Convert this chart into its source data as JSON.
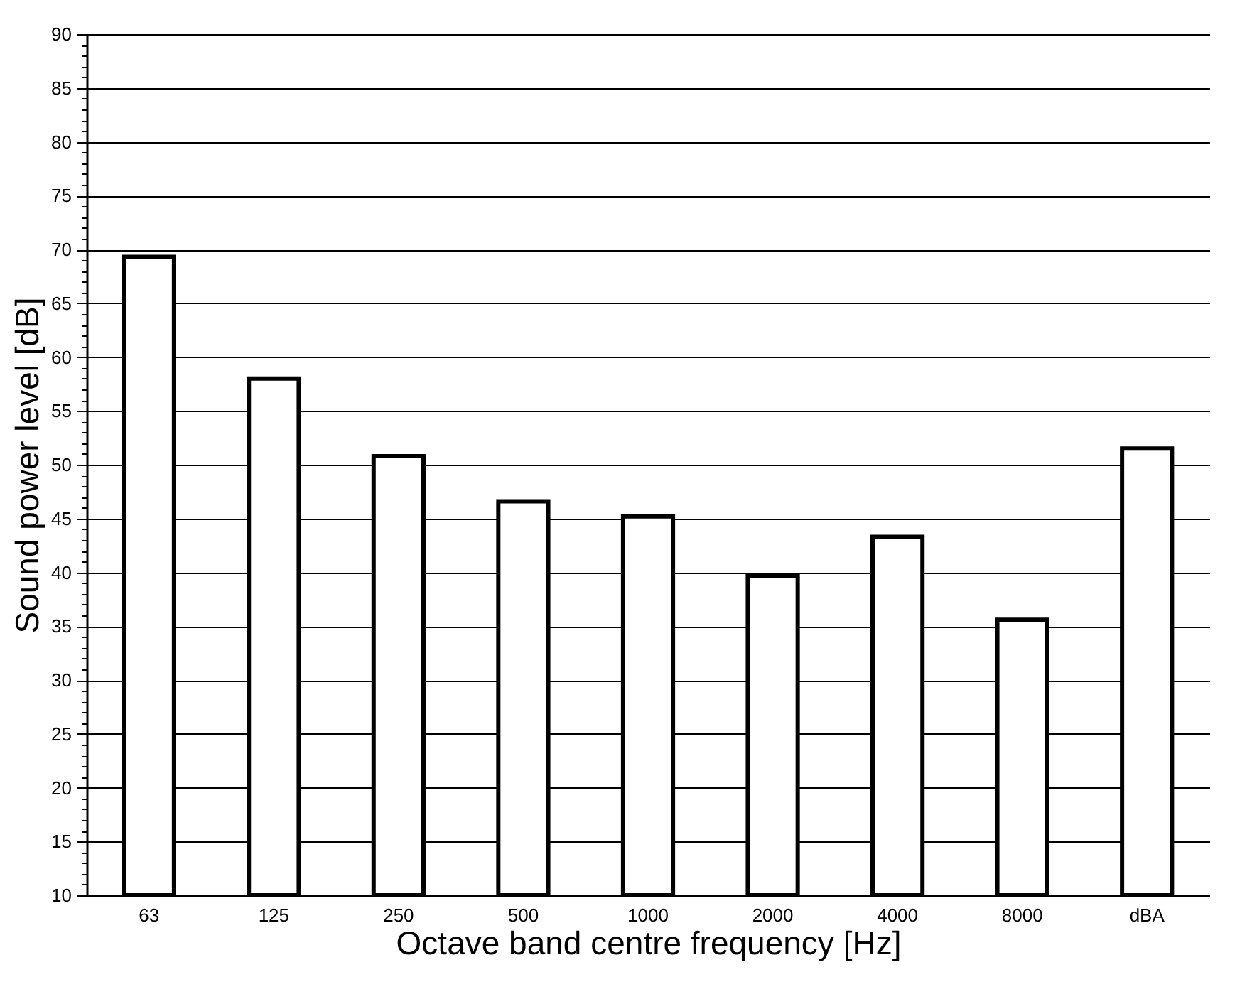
{
  "chart_data": {
    "type": "bar",
    "xlabel": "Octave band centre frequency [Hz]",
    "ylabel": "Sound power level [dB]",
    "categories": [
      "63",
      "125",
      "250",
      "500",
      "1000",
      "2000",
      "4000",
      "8000",
      "dBA"
    ],
    "values": [
      69.3,
      58.0,
      50.8,
      46.6,
      45.2,
      39.7,
      43.3,
      35.6,
      51.5
    ],
    "color": "#ffffff",
    "ylim": [
      10,
      90
    ],
    "yticks": [
      10,
      {
        "value": 11,
        "label": null
      },
      {
        "value": 12,
        "label": null
      },
      {
        "value": 13,
        "label": null
      },
      {
        "value": 14,
        "label": null
      },
      15,
      {
        "value": 16,
        "label": null
      },
      {
        "value": 17,
        "label": null
      },
      {
        "value": 18,
        "label": null
      },
      {
        "value": 19,
        "label": null
      },
      20,
      {
        "value": 21,
        "label": null
      },
      {
        "value": 22,
        "label": null
      },
      {
        "value": 23,
        "label": null
      },
      {
        "value": 24,
        "label": null
      },
      25,
      {
        "value": 26,
        "label": null
      },
      {
        "value": 27,
        "label": null
      },
      {
        "value": 28,
        "label": null
      },
      {
        "value": 29,
        "label": null
      },
      30,
      {
        "value": 31,
        "label": null
      },
      {
        "value": 32,
        "label": null
      },
      {
        "value": 33,
        "label": null
      },
      {
        "value": 34,
        "label": null
      },
      35,
      {
        "value": 36,
        "label": null
      },
      {
        "value": 37,
        "label": null
      },
      {
        "value": 38,
        "label": null
      },
      {
        "value": 39,
        "label": null
      },
      40,
      {
        "value": 41,
        "label": null
      },
      {
        "value": 42,
        "label": null
      },
      {
        "value": 43,
        "label": null
      },
      {
        "value": 44,
        "label": null
      },
      45,
      {
        "value": 46,
        "label": null
      },
      {
        "value": 47,
        "label": null
      },
      {
        "value": 48,
        "label": null
      },
      {
        "value": 49,
        "label": null
      },
      50,
      {
        "value": 51,
        "label": null
      },
      {
        "value": 52,
        "label": null
      },
      {
        "value": 53,
        "label": null
      },
      {
        "value": 54,
        "label": null
      },
      55,
      {
        "value": 56,
        "label": null
      },
      {
        "value": 57,
        "label": null
      },
      {
        "value": 58,
        "label": null
      },
      {
        "value": 59,
        "label": null
      },
      60,
      {
        "value": 61,
        "label": null
      },
      {
        "value": 62,
        "label": null
      },
      {
        "value": 63,
        "label": null
      },
      {
        "value": 64,
        "label": null
      },
      65,
      {
        "value": 66,
        "label": null
      },
      {
        "value": 67,
        "label": null
      },
      {
        "value": 68,
        "label": null
      },
      {
        "value": 69,
        "label": null
      },
      70,
      {
        "value": 71,
        "label": null
      },
      {
        "value": 72,
        "label": null
      },
      {
        "value": 73,
        "label": null
      },
      {
        "value": 74,
        "label": null
      },
      75,
      {
        "value": 76,
        "label": null
      },
      {
        "value": 77,
        "label": null
      },
      {
        "value": 78,
        "label": null
      },
      {
        "value": 79,
        "label": null
      },
      80,
      {
        "value": 81,
        "label": null
      },
      {
        "value": 82,
        "label": null
      },
      {
        "value": 83,
        "label": null
      },
      {
        "value": 84,
        "label": null
      },
      85,
      {
        "value": 86,
        "label": null
      },
      {
        "value": 87,
        "label": null
      },
      {
        "value": 88,
        "label": null
      },
      {
        "value": 89,
        "label": null
      },
      90
    ],
    "grid": "y"
  }
}
